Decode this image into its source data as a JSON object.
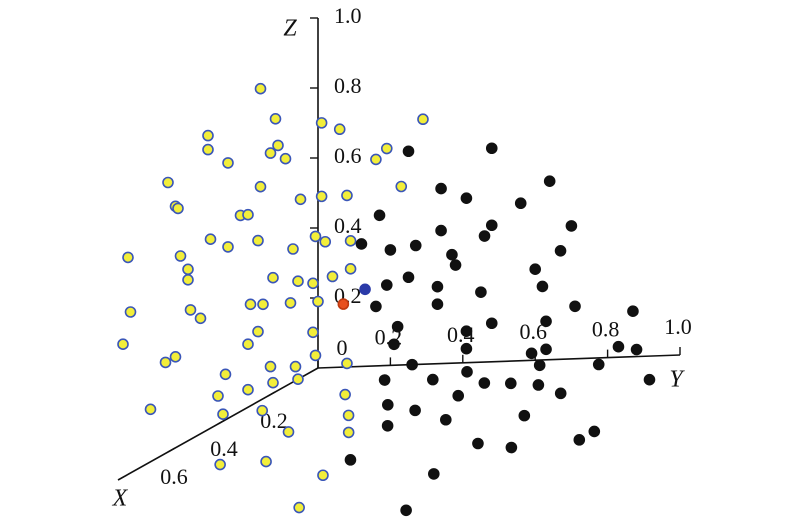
{
  "chart_data": {
    "type": "scatter3d",
    "xlabel": "X",
    "ylabel": "Y",
    "zlabel": "Z",
    "xlim": [
      0,
      0.8
    ],
    "ylim": [
      0,
      1
    ],
    "zlim": [
      0,
      1
    ],
    "xticks": [
      0.2,
      0.4,
      0.6
    ],
    "yticks": [
      0,
      0.2,
      0.4,
      0.6,
      0.8,
      {
        "value": 1,
        "label": "1.0"
      }
    ],
    "zticks": [
      0.2,
      0.4,
      0.6,
      0.8,
      {
        "value": 1,
        "label": "1.0"
      }
    ],
    "series": [
      {
        "color": "#f2ee3a",
        "edgecolor": "#3a56b8",
        "x": [
          0.23,
          0.17,
          0.44,
          0.44,
          0.16,
          0.19,
          0.13,
          0.36,
          0.6,
          0.23,
          0.07,
          0.57,
          0.56,
          0.31,
          0.28,
          0.43,
          0.36,
          0.24,
          0.1,
          0.01,
          0.76,
          0.55,
          0.52,
          0.52,
          0.08,
          0.18,
          0.02,
          0.27,
          0.22,
          0.11,
          0.75,
          0.51,
          0.47,
          0.24,
          0.28,
          0.02,
          0.78,
          0.61,
          0.57,
          0.19,
          0.09,
          0.01,
          0.37,
          0.08,
          0.18,
          0.4,
          0.28,
          0.67,
          0.38,
          0.31,
          0.71,
          0.48,
          0.7,
          1.06,
          0,
          0,
          0,
          0,
          0,
          0,
          0,
          0,
          0,
          0,
          0,
          0,
          0,
          0,
          0.21,
          0.37,
          0.5,
          0.82
        ],
        "y": [
          0,
          0,
          0,
          0,
          0,
          0,
          0,
          0,
          0,
          0,
          0,
          0,
          0,
          0,
          0,
          0,
          0,
          0,
          0,
          0,
          0,
          0,
          0,
          0,
          0,
          0,
          0,
          0,
          0,
          0,
          0,
          0,
          0,
          0,
          0,
          0,
          0,
          0,
          0,
          0,
          0,
          0,
          0,
          0,
          0,
          0,
          0,
          0,
          0,
          0.06,
          0.22,
          0.25,
          0.34,
          0.68,
          0.01,
          0.06,
          0.19,
          0.29,
          0.16,
          0.23,
          0.01,
          0.08,
          0.02,
          0.09,
          0.09,
          0.04,
          0,
          0.08,
          0.22,
          0.34,
          0.43,
          0.58
        ],
        "z": [
          0.89,
          0.78,
          0.84,
          0.8,
          0.7,
          0.69,
          0.65,
          0.73,
          0.77,
          0.61,
          0.51,
          0.69,
          0.68,
          0.56,
          0.55,
          0.54,
          0.49,
          0.46,
          0.38,
          0.38,
          0.62,
          0.54,
          0.49,
          0.46,
          0.28,
          0.33,
          0.25,
          0.29,
          0.27,
          0.23,
          0.46,
          0.37,
          0.33,
          0.2,
          0.18,
          0.11,
          0.38,
          0.26,
          0.26,
          0.08,
          0.04,
          0.04,
          0.13,
          0,
          0.03,
          0.08,
          0.05,
          0.15,
          0.02,
          0,
          0,
          0,
          0,
          0,
          0.7,
          0.68,
          0.62,
          0.7,
          0.59,
          0.51,
          0.49,
          0.49,
          0.36,
          0.36,
          0.28,
          0.26,
          0.19,
          0.01,
          0,
          0,
          0,
          0
        ]
      },
      {
        "color": "#111111",
        "edgecolor": "#111111",
        "x": [
          0,
          0,
          0,
          0,
          0,
          0,
          0,
          0,
          0,
          0,
          0,
          0,
          0,
          0,
          0,
          0,
          0,
          0,
          0,
          0,
          0,
          0,
          0,
          0,
          0,
          0,
          0,
          0,
          0,
          0,
          0,
          0,
          0,
          0,
          0,
          0,
          0,
          0.05,
          0,
          0.07,
          0.11,
          0.04,
          0.12,
          0.16,
          0.17,
          0.19,
          0.26,
          0.18,
          0.25,
          0.35,
          0.3,
          0.42,
          0.56,
          0.62,
          0.66,
          0.62,
          0.46,
          0.43,
          0.71,
          0.84,
          1.11
        ],
        "y": [
          0.25,
          0.48,
          0.64,
          0.34,
          0.41,
          0.56,
          0.17,
          0.48,
          0.34,
          0.7,
          0.12,
          0.2,
          0.46,
          0.27,
          0.37,
          0.67,
          0.6,
          0.38,
          0.25,
          0.19,
          0.33,
          0.62,
          0.45,
          0.16,
          0.33,
          0.71,
          0.87,
          0.48,
          0.41,
          0.22,
          0.63,
          0.88,
          0.83,
          0.21,
          0.41,
          0.63,
          0.59,
          0.81,
          0.26,
          0.46,
          0.26,
          0.64,
          0.4,
          0.57,
          0.65,
          0.74,
          0.85,
          1.04,
          0.56,
          0.51,
          0.4,
          0.86,
          1.15,
          0.87,
          0.99,
          1.15,
          0.51,
          0.65,
          0.58,
          0.9,
          1.01
        ],
        "z": [
          0.61,
          0.61,
          0.51,
          0.5,
          0.47,
          0.45,
          0.43,
          0.39,
          0.38,
          0.38,
          0.35,
          0.33,
          0.36,
          0.34,
          0.31,
          0.31,
          0.26,
          0.28,
          0.25,
          0.23,
          0.22,
          0.21,
          0.2,
          0.17,
          0.17,
          0.15,
          0.13,
          0.11,
          0.09,
          0.11,
          0.11,
          0.02,
          0.03,
          0.06,
          0.04,
          0.03,
          0.02,
          0,
          0,
          0,
          0,
          0,
          0,
          0,
          0,
          0,
          0,
          0,
          0,
          0,
          0,
          0,
          0,
          0,
          0,
          0,
          0,
          0,
          0,
          0,
          0
        ]
      },
      {
        "color": "#2a3aa8",
        "edgecolor": "#2a3aa8",
        "x": [
          0
        ],
        "y": [
          0.13
        ],
        "z": [
          0.22
        ]
      },
      {
        "color": "#e8501e",
        "edgecolor": "#c03a10",
        "x": [
          0
        ],
        "y": [
          0.07
        ],
        "z": [
          0.18
        ]
      }
    ]
  }
}
